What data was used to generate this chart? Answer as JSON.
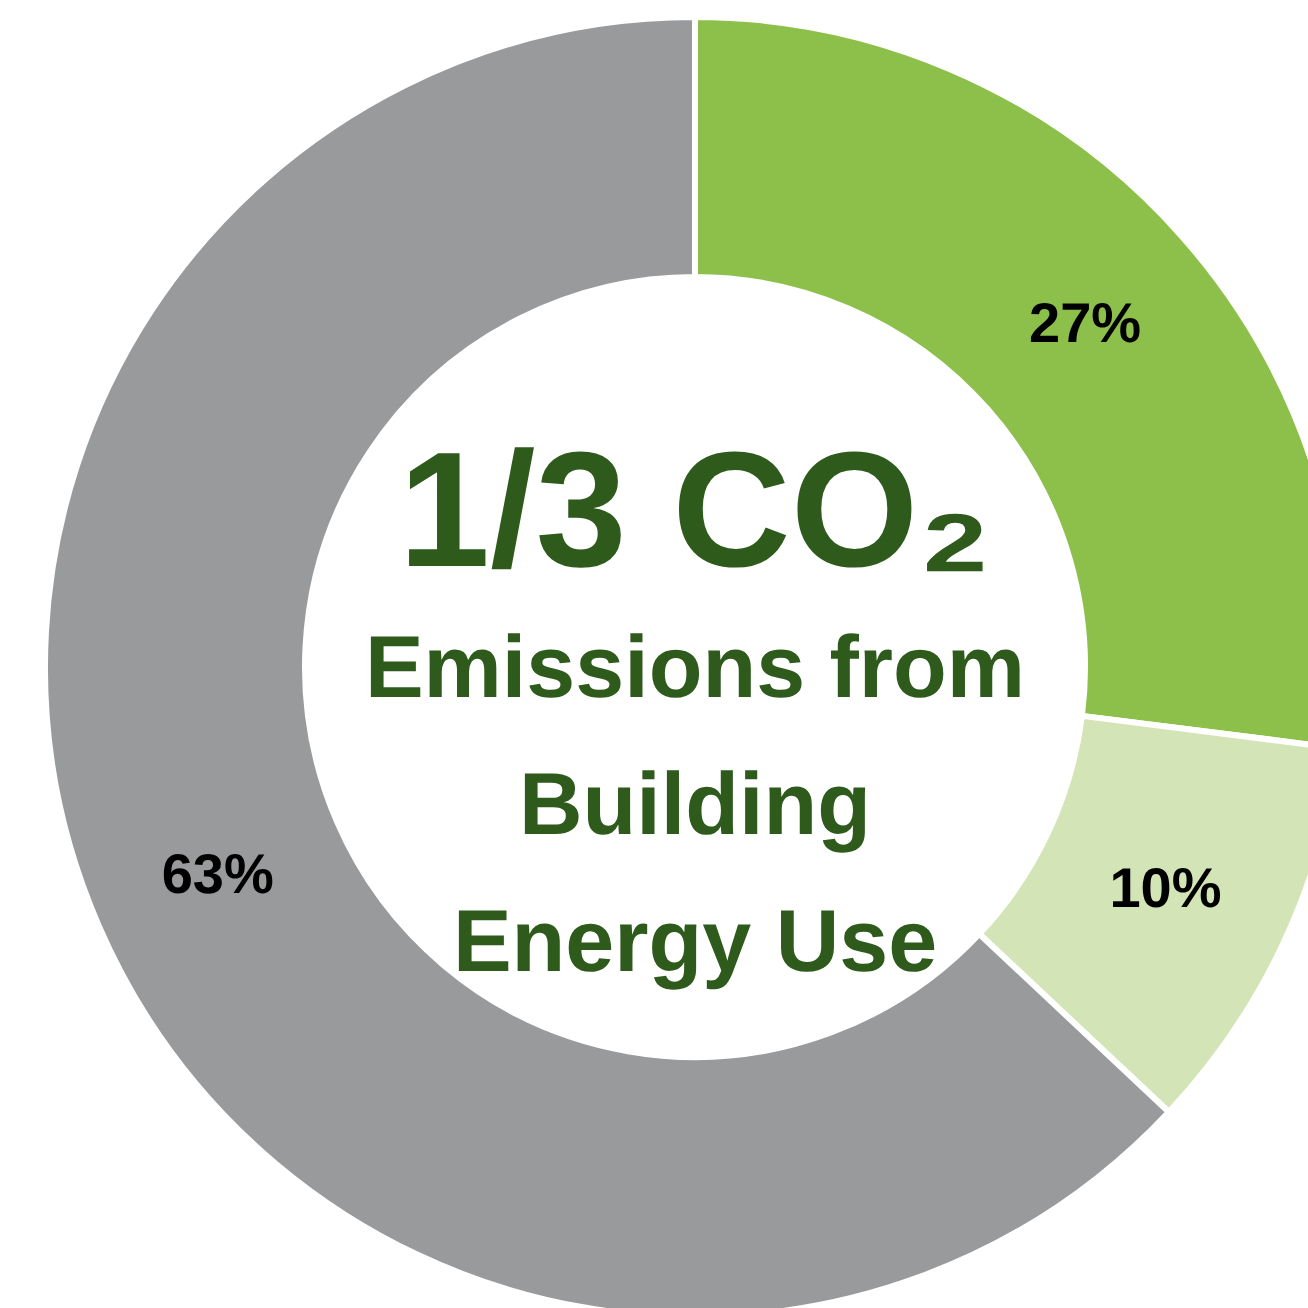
{
  "chart_data": {
    "type": "donut",
    "categories": [
      null,
      null,
      null
    ],
    "values": [
      27,
      10,
      63
    ],
    "colors": [
      "#8dc04a",
      "#d3e5b6",
      "#999a9c"
    ],
    "value_labels": [
      "27%",
      "10%",
      "63%"
    ],
    "annotations": [
      "1/3 CO₂",
      "Emissions from\nBuilding\nEnergy Use"
    ]
  }
}
